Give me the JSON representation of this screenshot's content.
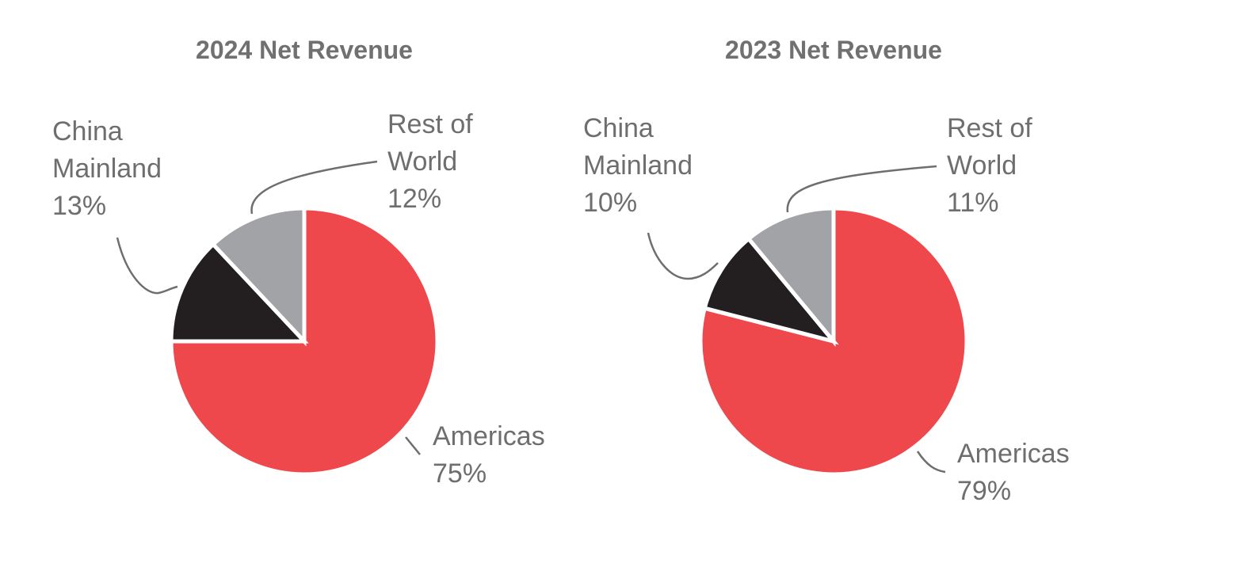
{
  "chart_data": [
    {
      "type": "pie",
      "title": "2024 Net Revenue",
      "start_angle_deg": 0,
      "direction": "clockwise",
      "slices": [
        {
          "key": "americas",
          "label": "Americas",
          "value": 75,
          "value_label": "75%",
          "color": "#ee484c"
        },
        {
          "key": "china",
          "label": "China Mainland",
          "label_lines": [
            "China",
            "Mainland"
          ],
          "value": 13,
          "value_label": "13%",
          "color": "#231f20"
        },
        {
          "key": "row",
          "label": "Rest of World",
          "label_lines": [
            "Rest of",
            "World"
          ],
          "value": 12,
          "value_label": "12%",
          "color": "#a2a3a6"
        }
      ]
    },
    {
      "type": "pie",
      "title": "2023 Net Revenue",
      "start_angle_deg": 0,
      "direction": "clockwise",
      "slices": [
        {
          "key": "americas",
          "label": "Americas",
          "value": 79,
          "value_label": "79%",
          "color": "#ee484c"
        },
        {
          "key": "china",
          "label": "China Mainland",
          "label_lines": [
            "China",
            "Mainland"
          ],
          "value": 10,
          "value_label": "10%",
          "color": "#231f20"
        },
        {
          "key": "row",
          "label": "Rest of World",
          "label_lines": [
            "Rest of",
            "World"
          ],
          "value": 11,
          "value_label": "11%",
          "color": "#a2a3a6"
        }
      ]
    }
  ]
}
